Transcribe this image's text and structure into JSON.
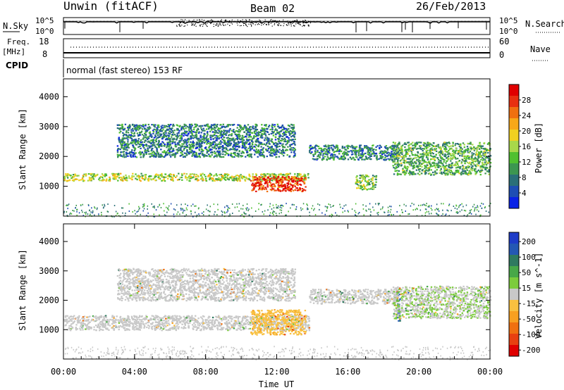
{
  "header": {
    "title": "Unwin (fitACF)",
    "beam": "Beam 02",
    "date": "26/Feb/2013"
  },
  "top_panels": {
    "nsky_label": "N.Sky",
    "nsky_ticks": [
      "10^5",
      "10^0"
    ],
    "nsearch_label": "N.Search",
    "nsearch_ticks": [
      "10^5",
      "10^0"
    ],
    "freq_label": "Freq.",
    "freq_unit": "[MHz]",
    "freq_ticks": [
      "18",
      "8"
    ],
    "nave_label": "Nave",
    "nave_ticks": [
      "60",
      "0"
    ],
    "cpid_label": "CPID",
    "cpid_text": "normal (fast stereo) 153 RF"
  },
  "chart_data": [
    {
      "type": "heatmap",
      "parameter": "power",
      "ylabel": "Slant Range [km]",
      "xlabel": "",
      "ylim": [
        0,
        4600
      ],
      "yticks": [
        1000,
        2000,
        3000,
        4000
      ],
      "xlim_hours": [
        0,
        24
      ],
      "colorbar": {
        "label": "Power [dB]",
        "ticks": [
          "4",
          "8",
          "12",
          "16",
          "20",
          "24",
          "28"
        ],
        "range": [
          0,
          32
        ],
        "colors": [
          "#0a22e6",
          "#1e4eb4",
          "#2a6f78",
          "#3c9650",
          "#50c030",
          "#a8d84a",
          "#f0d020",
          "#f8a818",
          "#f07010",
          "#e83010",
          "#e00000"
        ]
      },
      "features": [
        {
          "name": "low-range-band",
          "t_start": 0.0,
          "t_end": 13.8,
          "range_start": 1200,
          "range_end": 1450,
          "power_db": 16
        },
        {
          "name": "main-echo-strip",
          "t_start": 10.5,
          "t_end": 13.6,
          "range_start": 850,
          "range_end": 1350,
          "power_db": 28
        },
        {
          "name": "upper-echo-band",
          "t_start": 3.0,
          "t_end": 13.0,
          "range_start": 2000,
          "range_end": 3100,
          "power_db": 8
        },
        {
          "name": "mid-arc",
          "t_start": 13.8,
          "t_end": 18.8,
          "range_start": 1900,
          "range_end": 2400,
          "power_db": 8
        },
        {
          "name": "evening-patch",
          "t_start": 16.4,
          "t_end": 17.6,
          "range_start": 900,
          "range_end": 1400,
          "power_db": 14
        },
        {
          "name": "late-arc",
          "t_start": 18.5,
          "t_end": 24.0,
          "range_start": 1400,
          "range_end": 2500,
          "power_db": 12
        }
      ]
    },
    {
      "type": "heatmap",
      "parameter": "velocity",
      "ylabel": "Slant Range [km]",
      "xlabel": "Time UT",
      "ylim": [
        0,
        4600
      ],
      "yticks": [
        1000,
        2000,
        3000,
        4000
      ],
      "xlim_hours": [
        0,
        24
      ],
      "xticks": [
        "00:00",
        "04:00",
        "08:00",
        "12:00",
        "16:00",
        "20:00",
        "00:00"
      ],
      "colorbar": {
        "label": "Velocity [m s^-1]",
        "ticks": [
          "200",
          "100",
          "50",
          "15",
          "-15",
          "-50",
          "-100",
          "-200"
        ],
        "range": [
          -250,
          250
        ],
        "colors": [
          "#1e3cc8",
          "#2458b4",
          "#2f7a60",
          "#48a848",
          "#7ccc3c",
          "#c8c8c8",
          "#f8c040",
          "#f8a020",
          "#f07010",
          "#e84010",
          "#e00000"
        ]
      },
      "features": [
        {
          "name": "low-range-band",
          "t_start": 0.0,
          "t_end": 13.8,
          "range_start": 1000,
          "range_end": 1500,
          "velocity": 0
        },
        {
          "name": "main-echo-strip",
          "t_start": 10.5,
          "t_end": 13.6,
          "range_start": 850,
          "range_end": 1700,
          "velocity": -60
        },
        {
          "name": "upper-echo-band",
          "t_start": 3.0,
          "t_end": 13.0,
          "range_start": 2000,
          "range_end": 3100,
          "velocity": 0
        },
        {
          "name": "mid-arc",
          "t_start": 13.8,
          "t_end": 18.8,
          "range_start": 1900,
          "range_end": 2400,
          "velocity": 0
        },
        {
          "name": "positive-streak",
          "t_start": 18.7,
          "t_end": 18.9,
          "range_start": 1300,
          "range_end": 2300,
          "velocity": 180
        },
        {
          "name": "late-arc",
          "t_start": 18.5,
          "t_end": 24.0,
          "range_start": 1400,
          "range_end": 2500,
          "velocity": 20
        }
      ]
    }
  ]
}
